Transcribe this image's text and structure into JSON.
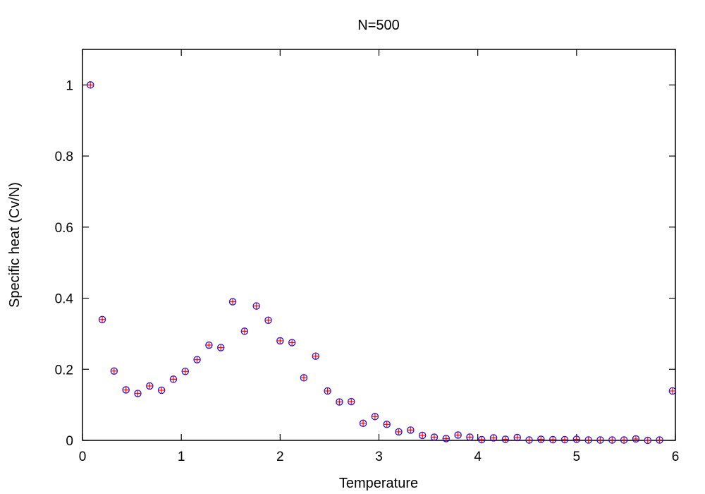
{
  "chart_data": {
    "type": "scatter",
    "title": "N=500",
    "xlabel": "Temperature",
    "ylabel": "Specific heat (Cv/N)",
    "xlim": [
      0,
      6
    ],
    "ylim": [
      0,
      1.1
    ],
    "xticks": [
      0,
      1,
      2,
      3,
      4,
      5,
      6
    ],
    "yticks": [
      0,
      0.2,
      0.4,
      0.6,
      0.8,
      1
    ],
    "xtick_labels": [
      "0",
      "1",
      "2",
      "3",
      "4",
      "5",
      "6"
    ],
    "ytick_labels": [
      "0",
      "0.2",
      "0.4",
      "0.6",
      "0.8",
      "1"
    ],
    "grid": false,
    "colors": {
      "circle": "#0000ff",
      "cross": "#ff0000"
    },
    "series": [
      {
        "x": [
          0.08,
          0.2,
          0.32,
          0.44,
          0.56,
          0.68,
          0.8,
          0.92,
          1.04,
          1.16,
          1.28,
          1.4,
          1.52,
          1.64,
          1.76,
          1.88,
          2.0,
          2.12,
          2.24,
          2.36,
          2.48,
          2.6,
          2.72,
          2.84,
          2.96,
          3.08,
          3.2,
          3.32,
          3.44,
          3.56,
          3.68,
          3.8,
          3.92,
          4.04,
          4.16,
          4.28,
          4.4,
          4.52,
          4.64,
          4.76,
          4.88,
          5.0,
          5.12,
          5.24,
          5.36,
          5.48,
          5.6,
          5.72,
          5.84,
          5.97
        ],
        "y": [
          1.0,
          0.34,
          0.195,
          0.142,
          0.132,
          0.153,
          0.141,
          0.172,
          0.194,
          0.227,
          0.268,
          0.261,
          0.39,
          0.307,
          0.378,
          0.338,
          0.28,
          0.275,
          0.176,
          0.237,
          0.139,
          0.108,
          0.109,
          0.048,
          0.067,
          0.045,
          0.024,
          0.029,
          0.014,
          0.009,
          0.005,
          0.015,
          0.009,
          0.002,
          0.007,
          0.003,
          0.008,
          0.001,
          0.003,
          0.002,
          0.002,
          0.003,
          0.001,
          0.001,
          0.001,
          0.001,
          0.004,
          0.0,
          0.001,
          0.139
        ]
      }
    ]
  }
}
